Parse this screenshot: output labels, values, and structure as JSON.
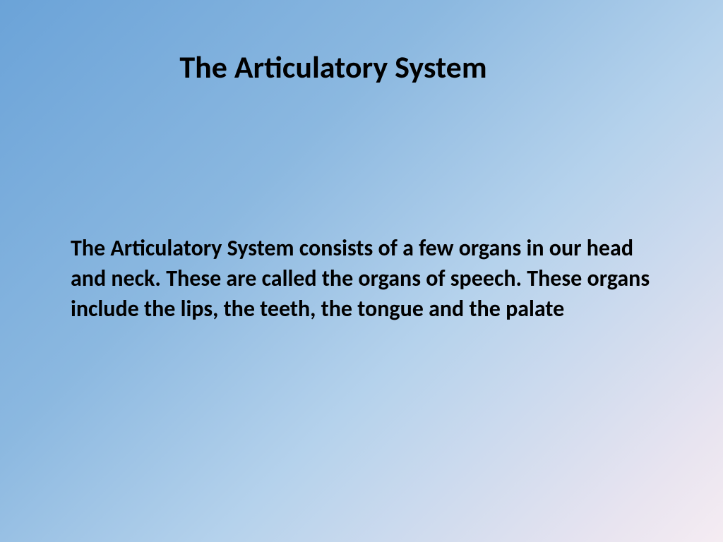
{
  "slide": {
    "title": "The Articulatory System",
    "body": "The Articulatory System consists of a few organs in our head and neck. These are called the organs of speech. These organs include the lips, the teeth, the tongue and the palate",
    "background_gradient": {
      "start_color": "#6ba3d8",
      "mid_color": "#b5d2ec",
      "end_color": "#f5ecf2",
      "angle": 135
    },
    "title_style": {
      "font_size": 44,
      "font_weight": "bold",
      "color": "#000000"
    },
    "body_style": {
      "font_size": 32,
      "font_weight": "bold",
      "color": "#000000",
      "line_height": 1.35
    }
  }
}
